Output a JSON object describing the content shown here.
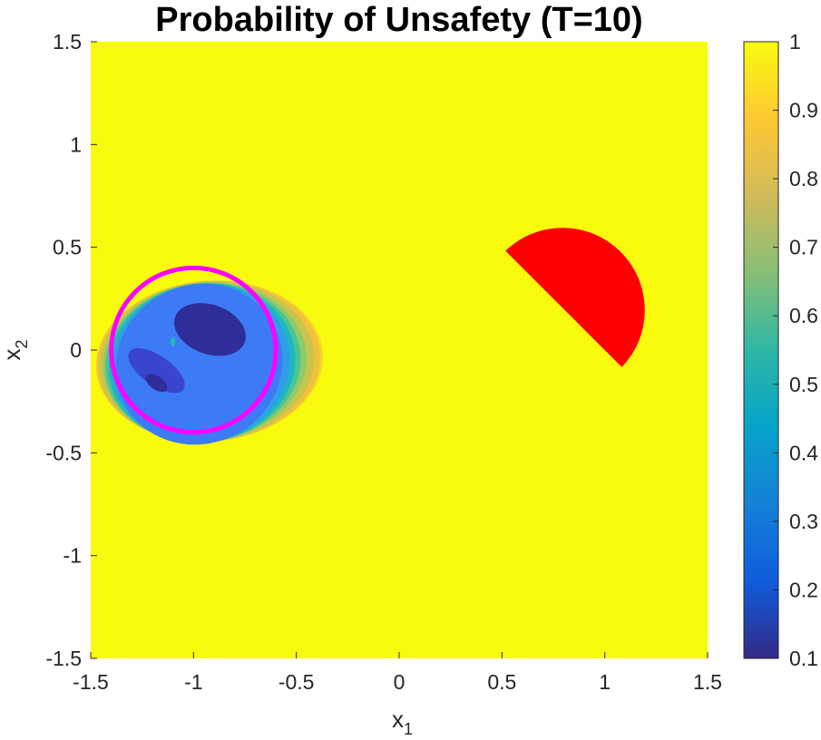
{
  "chart_data": {
    "type": "heatmap",
    "title": "Probability of Unsafety (T=10)",
    "xlabel": "x",
    "xlabel_subscript": "1",
    "ylabel": "x",
    "ylabel_subscript": "2",
    "xlim": [
      -1.5,
      1.5
    ],
    "ylim": [
      -1.5,
      1.5
    ],
    "x_ticks": [
      -1.5,
      -1,
      -0.5,
      0,
      0.5,
      1,
      1.5
    ],
    "x_tick_labels": [
      "-1.5",
      "-1",
      "-0.5",
      "0",
      "0.5",
      "1",
      "1.5"
    ],
    "y_ticks": [
      -1.5,
      -1,
      -0.5,
      0,
      0.5,
      1,
      1.5
    ],
    "y_tick_labels": [
      "-1.5",
      "-1",
      "-0.5",
      "0",
      "0.5",
      "1",
      "1.5"
    ],
    "background_probability": 1.0,
    "colorbar": {
      "range": [
        0.1,
        1
      ],
      "ticks": [
        0.1,
        0.2,
        0.3,
        0.4,
        0.5,
        0.6,
        0.7,
        0.8,
        0.9,
        1
      ],
      "tick_labels": [
        "0.1",
        "0.2",
        "0.3",
        "0.4",
        "0.5",
        "0.6",
        "0.7",
        "0.8",
        "0.9",
        "1"
      ],
      "colormap": "parula",
      "colors": [
        "#352A87",
        "#0F5CDD",
        "#1481D6",
        "#06A4CA",
        "#2EB7A4",
        "#87BF77",
        "#D1BB59",
        "#FEC832",
        "#F9FB0E"
      ]
    },
    "safe_region": {
      "shape": "circle",
      "center": [
        -1,
        0
      ],
      "radius": 0.4,
      "boundary_color": "#FF00FF"
    },
    "unsafe_region": {
      "shape": "half-disk",
      "center": [
        0.8,
        0.2
      ],
      "radius": 0.4,
      "color": "#FF0000"
    },
    "contour_levels": [
      {
        "probability": 0.95,
        "color": "#F4D829"
      },
      {
        "probability": 0.85,
        "color": "#F2C13C"
      },
      {
        "probability": 0.75,
        "color": "#C9C44C"
      },
      {
        "probability": 0.65,
        "color": "#8ECA6A"
      },
      {
        "probability": 0.55,
        "color": "#4CC494"
      },
      {
        "probability": 0.45,
        "color": "#1EB8C0"
      },
      {
        "probability": 0.35,
        "color": "#2E9FE6"
      },
      {
        "probability": 0.28,
        "color": "#3D7AF5"
      },
      {
        "probability": 0.18,
        "color": "#3945CC"
      },
      {
        "probability": 0.12,
        "color": "#2E2D9A"
      }
    ]
  }
}
